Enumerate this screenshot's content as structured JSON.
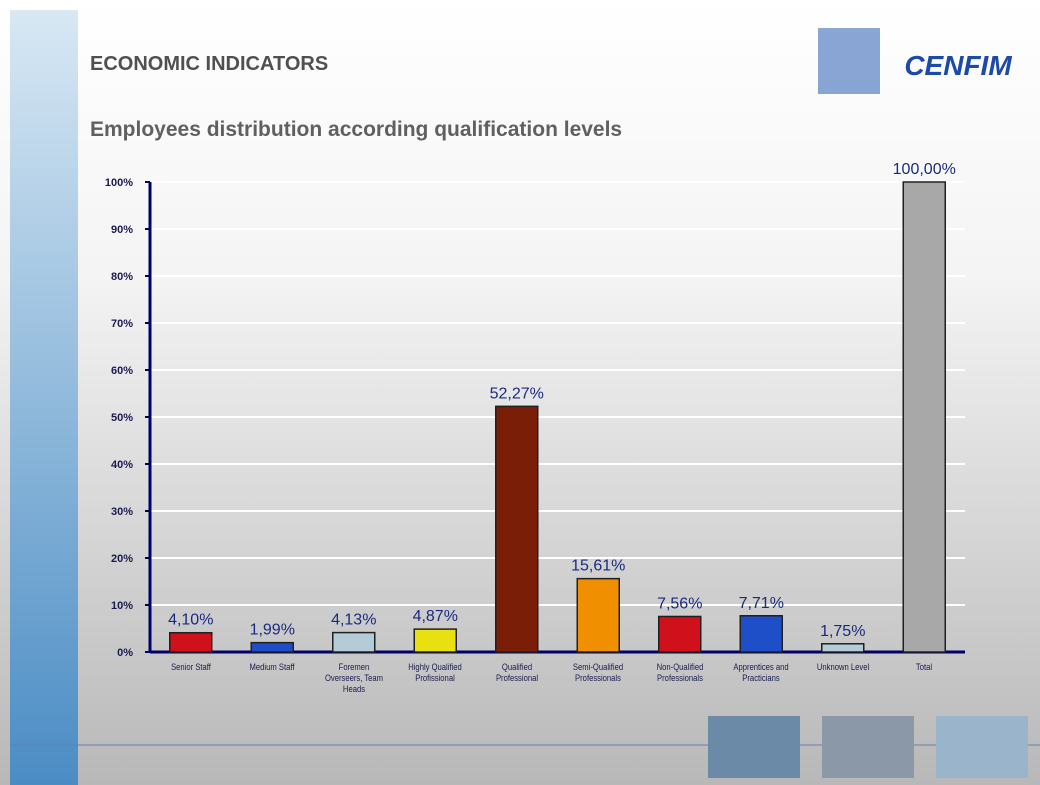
{
  "slide": {
    "heading": "ECONOMIC INDICATORS",
    "logo": "CENFIM"
  },
  "chart_data": {
    "type": "bar",
    "title": "Employees distribution according qualification levels",
    "categories": [
      "Senior Staff",
      "Medium Staff",
      "Foremen Overseers, Team Heads",
      "Highly Qualified Profissional",
      "Qualified Professional",
      "Semi-Qualified Professionals",
      "Non-Qualified Professionals",
      "Apprentices and Practicians",
      "Unknown Level",
      "Total"
    ],
    "values": [
      4.1,
      1.99,
      4.13,
      4.87,
      52.27,
      15.61,
      7.56,
      7.71,
      1.75,
      100
    ],
    "value_labels": [
      "4,10%",
      "1,99%",
      "4,13%",
      "4,87%",
      "52,27%",
      "15,61%",
      "7,56%",
      "7,71%",
      "1,75%",
      "100,00%"
    ],
    "colors": [
      "#d0101a",
      "#1f4fc8",
      "#b4ccd8",
      "#e8e010",
      "#7a1e08",
      "#f09000",
      "#d0101a",
      "#1f4fc8",
      "#b4ccd8",
      "#a8a8a8"
    ],
    "ylim": [
      0,
      100
    ],
    "yticks": [
      {
        "value": 0,
        "label": "0%"
      },
      {
        "value": 10,
        "label": "10%"
      },
      {
        "value": 20,
        "label": "20%"
      },
      {
        "value": 30,
        "label": "30%"
      },
      {
        "value": 40,
        "label": "40%"
      },
      {
        "value": 50,
        "label": "50%"
      },
      {
        "value": 60,
        "label": "60%"
      },
      {
        "value": 70,
        "label": "70%"
      },
      {
        "value": 80,
        "label": "80%"
      },
      {
        "value": 90,
        "label": "90%"
      },
      {
        "value": 100,
        "label": "100%"
      }
    ],
    "grid": true
  }
}
